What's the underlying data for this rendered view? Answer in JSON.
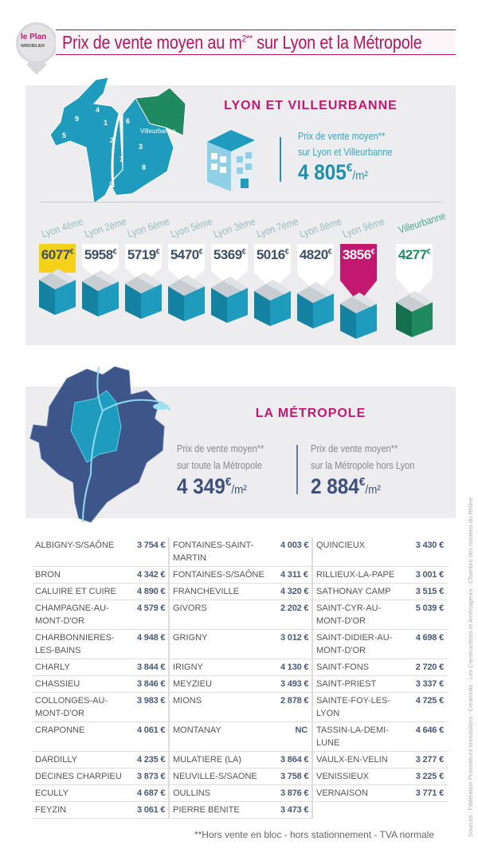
{
  "logo": {
    "line1a": "le ",
    "line1b": "Plan",
    "line2": "IMMOBILIER"
  },
  "header": {
    "title": "Prix de vente moyen au m",
    "title_sup": "2**",
    "title_end": " sur Lyon et la Métropole"
  },
  "lyon": {
    "title": "LYON ET VILLEURBANNE",
    "map_label": "Villeurbanne",
    "districts": [
      "9",
      "4",
      "1",
      "6",
      "5",
      "2",
      "3",
      "7",
      "8"
    ],
    "avg_line1": "Prix de vente moyen**",
    "avg_line2": "sur Lyon et Villeurbanne",
    "avg_value": "4 805",
    "avg_currency": "€",
    "avg_unit": "/m²"
  },
  "colors": {
    "pink": "#c2186f",
    "teal": "#1f9bbd",
    "green": "#1f8a5f",
    "yellow": "#f5d21a",
    "navy": "#3d5588"
  },
  "chart_data": {
    "type": "bar",
    "title": "LYON ET VILLEURBANNE",
    "categories": [
      "Lyon 4ème",
      "Lyon 2ème",
      "Lyon 6ème",
      "Lyon 5ème",
      "Lyon 3ème",
      "Lyon 7ème",
      "Lyon 8ème",
      "Lyon 9ème",
      "Villeurbanne"
    ],
    "values": [
      6077,
      5958,
      5719,
      5470,
      5369,
      5016,
      4820,
      3856,
      4277
    ],
    "labels": [
      "6077",
      "5958",
      "5719",
      "5470",
      "5369",
      "5016",
      "4820",
      "3856",
      "4277"
    ],
    "currency": "€",
    "highlight": [
      "max",
      "",
      "",
      "",
      "",
      "",
      "",
      "min",
      "villeurbanne"
    ]
  },
  "metropole": {
    "title": "LA MÉTROPOLE",
    "left": {
      "line1": "Prix de vente moyen**",
      "line2": "sur toute la Métropole",
      "value": "4 349",
      "currency": "€",
      "unit": "/m²"
    },
    "right": {
      "line1": "Prix de vente moyen**",
      "line2": "sur la Métropole hors Lyon",
      "value": "2 884",
      "currency": "€",
      "unit": "/m²"
    }
  },
  "table": [
    [
      [
        "ALBIGNY-S/SAÔNE",
        "3 754 €"
      ],
      [
        "FONTAINES-SAINT-MARTIN",
        "4 003 €"
      ],
      [
        "QUINCIEUX",
        "3 430 €"
      ]
    ],
    [
      [
        "BRON",
        "4 342 €"
      ],
      [
        "FONTAINES-S/SAÔNE",
        "4 311 €"
      ],
      [
        "RILLIEUX-LA-PAPE",
        "3 001 €"
      ]
    ],
    [
      [
        "CALUIRE ET CUIRE",
        "4 890 €"
      ],
      [
        "FRANCHEVILLE",
        "4 320 €"
      ],
      [
        "SATHONAY CAMP",
        "3 515 €"
      ]
    ],
    [
      [
        "CHAMPAGNE-AU-MONT-D'OR",
        "4 579 €"
      ],
      [
        "GIVORS",
        "2 202 €"
      ],
      [
        "SAINT-CYR-AU-MONT-D'OR",
        "5 039 €"
      ]
    ],
    [
      [
        "CHARBONNIERES-LES-BAINS",
        "4 948 €"
      ],
      [
        "GRIGNY",
        "3 012 €"
      ],
      [
        "SAINT-DIDIER-AU-MONT-D'OR",
        "4 698 €"
      ]
    ],
    [
      [
        "CHARLY",
        "3 844 €"
      ],
      [
        "IRIGNY",
        "4 130 €"
      ],
      [
        "SAINT-FONS",
        "2 720 €"
      ]
    ],
    [
      [
        "CHASSIEU",
        "3 846 €"
      ],
      [
        "MEYZIEU",
        "3 493 €"
      ],
      [
        "SAINT-PRIEST",
        "3 337 €"
      ]
    ],
    [
      [
        "COLLONGES-AU-MONT-D'OR",
        "3 983 €"
      ],
      [
        "MIONS",
        "2 878 €"
      ],
      [
        "SAINTE-FOY-LES-LYON",
        "4 725 €"
      ]
    ],
    [
      [
        "CRAPONNE",
        "4 061 €"
      ],
      [
        "MONTANAY",
        "NC"
      ],
      [
        "TASSIN-LA-DEMI-LUNE",
        "4 646 €"
      ]
    ],
    [
      [
        "DARDILLY",
        "4 235 €"
      ],
      [
        "MULATIERE (LA)",
        "3 864 €"
      ],
      [
        "VAULX-EN-VELIN",
        "3 277 €"
      ]
    ],
    [
      [
        "DECINES CHARPIEU",
        "3 873 €"
      ],
      [
        "NEUVILLE-S/SAONE",
        "3 758 €"
      ],
      [
        "VENISSIEUX",
        "3 225 €"
      ]
    ],
    [
      [
        "ECULLY",
        "4 687 €"
      ],
      [
        "OULLINS",
        "3 876 €"
      ],
      [
        "VERNAISON",
        "3 771 €"
      ]
    ],
    [
      [
        "FEYZIN",
        "3 061 €"
      ],
      [
        "PIERRE BENITE",
        "3 473 €"
      ],
      [
        "",
        ""
      ]
    ]
  ],
  "footnote": "**Hors vente en bloc - hors stationnement - TVA normale",
  "sources": "Sources : Fédération Promoteurs Immobiliers - Ceramolis - Les Constructeurs et Aménageurs - Chambre des notaires du Rhône"
}
